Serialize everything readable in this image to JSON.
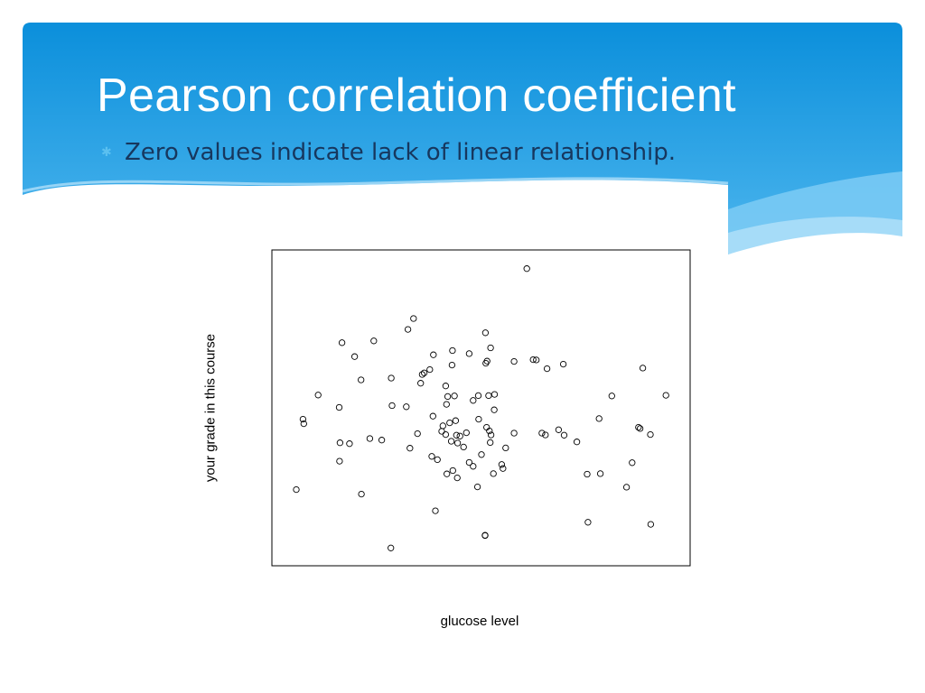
{
  "slide": {
    "title": "Pearson correlation coefficient",
    "bullet": "Zero values indicate lack of linear relationship."
  },
  "theme": {
    "banner_top": "#0b8fdb",
    "banner_bottom": "#4db6ee",
    "wave_light": "#a6dcf8",
    "title_color": "#ffffff",
    "bullet_text_color": "#17375e",
    "bullet_icon": "star-bullet-icon"
  },
  "chart_data": {
    "type": "scatter",
    "title": "",
    "xlabel": "glucose level",
    "ylabel": "your grade in this course",
    "xlim": [
      0,
      100
    ],
    "ylim": [
      0,
      100
    ],
    "grid": false,
    "legend": "none",
    "marker": "open-circle",
    "points": [
      [
        3.4,
        23.1
      ],
      [
        5.1,
        46.4
      ],
      [
        5.3,
        44.9
      ],
      [
        8.9,
        54.4
      ],
      [
        14.2,
        50.3
      ],
      [
        14.3,
        32.5
      ],
      [
        14.4,
        38.6
      ],
      [
        14.9,
        71.7
      ],
      [
        16.8,
        38.3
      ],
      [
        18.1,
        67.1
      ],
      [
        19.7,
        59.4
      ],
      [
        19.8,
        21.6
      ],
      [
        21.9,
        40.0
      ],
      [
        22.9,
        72.3
      ],
      [
        24.9,
        39.5
      ],
      [
        27.2,
        3.8
      ],
      [
        27.3,
        60.0
      ],
      [
        27.5,
        50.9
      ],
      [
        31.1,
        50.5
      ],
      [
        31.5,
        76.1
      ],
      [
        32.0,
        36.8
      ],
      [
        32.9,
        79.7
      ],
      [
        33.9,
        41.6
      ],
      [
        34.7,
        58.3
      ],
      [
        35.1,
        61.2
      ],
      [
        35.6,
        61.7
      ],
      [
        37.0,
        62.8
      ],
      [
        37.5,
        34.1
      ],
      [
        37.8,
        47.4
      ],
      [
        37.9,
        67.7
      ],
      [
        38.4,
        16.1
      ],
      [
        38.9,
        33.0
      ],
      [
        40.0,
        42.4
      ],
      [
        40.3,
        44.2
      ],
      [
        41.0,
        57.4
      ],
      [
        41.0,
        41.3
      ],
      [
        41.2,
        51.3
      ],
      [
        41.3,
        28.3
      ],
      [
        41.5,
        53.9
      ],
      [
        42.0,
        45.2
      ],
      [
        42.4,
        39.1
      ],
      [
        42.6,
        64.3
      ],
      [
        42.7,
        69.1
      ],
      [
        42.8,
        29.4
      ],
      [
        43.2,
        54.1
      ],
      [
        43.5,
        45.9
      ],
      [
        43.7,
        41.1
      ],
      [
        43.9,
        27.0
      ],
      [
        44.0,
        38.5
      ],
      [
        44.6,
        40.8
      ],
      [
        45.5,
        37.2
      ],
      [
        46.2,
        41.9
      ],
      [
        46.9,
        68.1
      ],
      [
        46.9,
        32.1
      ],
      [
        47.9,
        52.6
      ],
      [
        47.9,
        30.8
      ],
      [
        49.0,
        24.0
      ],
      [
        49.2,
        54.2
      ],
      [
        49.3,
        46.4
      ],
      [
        50.0,
        34.7
      ],
      [
        50.9,
        7.9
      ],
      [
        50.9,
        8.0
      ],
      [
        51.0,
        75.0
      ],
      [
        51.1,
        64.9
      ],
      [
        51.3,
        43.7
      ],
      [
        51.4,
        65.6
      ],
      [
        51.8,
        54.2
      ],
      [
        52.0,
        42.5
      ],
      [
        52.2,
        38.7
      ],
      [
        52.3,
        70.0
      ],
      [
        52.4,
        41.2
      ],
      [
        53.0,
        28.4
      ],
      [
        53.2,
        49.5
      ],
      [
        53.3,
        54.6
      ],
      [
        55.1,
        31.4
      ],
      [
        55.4,
        30.1
      ],
      [
        56.1,
        36.9
      ],
      [
        58.2,
        41.8
      ],
      [
        58.2,
        65.5
      ],
      [
        61.4,
        96.2
      ],
      [
        63.0,
        66.1
      ],
      [
        63.8,
        66.0
      ],
      [
        65.2,
        41.8
      ],
      [
        66.1,
        41.2
      ],
      [
        66.5,
        63.1
      ],
      [
        69.4,
        42.9
      ],
      [
        70.6,
        64.6
      ],
      [
        70.8,
        41.1
      ],
      [
        74.0,
        38.9
      ],
      [
        76.8,
        12.3
      ],
      [
        76.6,
        28.2
      ],
      [
        79.6,
        46.6
      ],
      [
        79.9,
        28.4
      ],
      [
        82.8,
        54.1
      ],
      [
        86.5,
        23.9
      ],
      [
        87.9,
        32.0
      ],
      [
        89.5,
        43.7
      ],
      [
        89.9,
        43.3
      ],
      [
        90.6,
        63.3
      ],
      [
        92.5,
        41.3
      ],
      [
        92.6,
        11.6
      ],
      [
        96.4,
        54.3
      ]
    ]
  }
}
